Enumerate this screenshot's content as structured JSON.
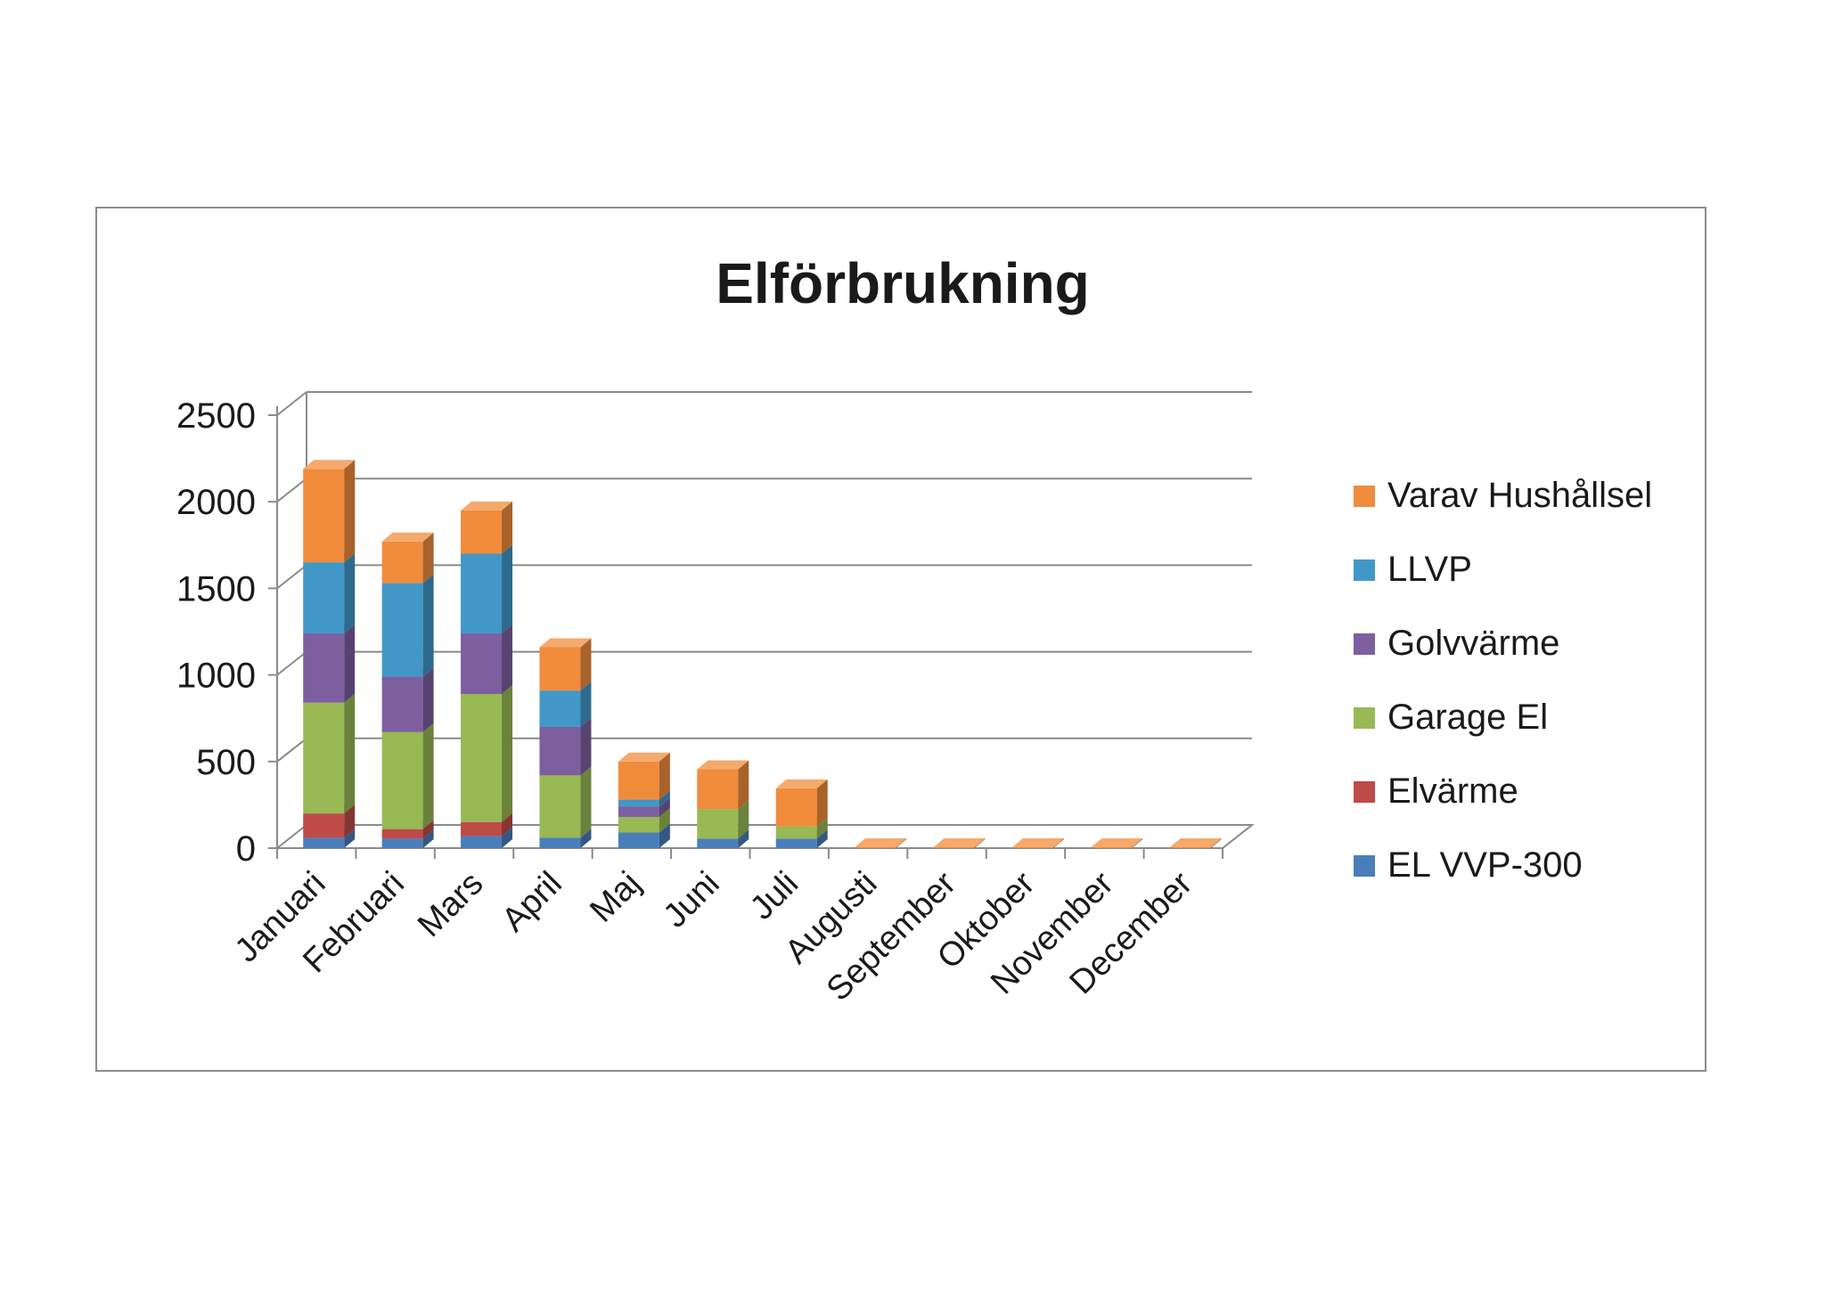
{
  "chart_data": {
    "type": "bar",
    "stacked": true,
    "style": "3d-stacked-column",
    "title": "Elförbrukning",
    "xlabel": "",
    "ylabel": "",
    "ylim": [
      0,
      2500
    ],
    "yticks": [
      0,
      500,
      1000,
      1500,
      2000,
      2500
    ],
    "grid": true,
    "legend_position": "right",
    "categories": [
      "Januari",
      "Februari",
      "Mars",
      "April",
      "Maj",
      "Juni",
      "Juli",
      "Augusti",
      "September",
      "Oktober",
      "November",
      "December"
    ],
    "series": [
      {
        "name": "EL VVP-300",
        "color": "#4a7ebb",
        "values": [
          60,
          55,
          70,
          60,
          90,
          55,
          55,
          0,
          0,
          0,
          0,
          0
        ]
      },
      {
        "name": "Elvärme",
        "color": "#be4b48",
        "values": [
          140,
          55,
          80,
          0,
          0,
          0,
          0,
          0,
          0,
          0,
          0,
          0
        ]
      },
      {
        "name": "Garage El",
        "color": "#98b954",
        "values": [
          640,
          560,
          740,
          360,
          90,
          170,
          70,
          0,
          0,
          0,
          0,
          0
        ]
      },
      {
        "name": "Golvvärme",
        "color": "#7d5fa0",
        "values": [
          400,
          320,
          350,
          280,
          60,
          0,
          0,
          0,
          0,
          0,
          0,
          0
        ]
      },
      {
        "name": "LLVP",
        "color": "#4198c8",
        "values": [
          410,
          540,
          460,
          210,
          40,
          0,
          0,
          0,
          0,
          0,
          0,
          0
        ]
      },
      {
        "name": "Varav Hushållsel",
        "color": "#f08c3c",
        "values": [
          540,
          240,
          250,
          250,
          220,
          230,
          220,
          5,
          5,
          5,
          5,
          5
        ]
      }
    ]
  }
}
